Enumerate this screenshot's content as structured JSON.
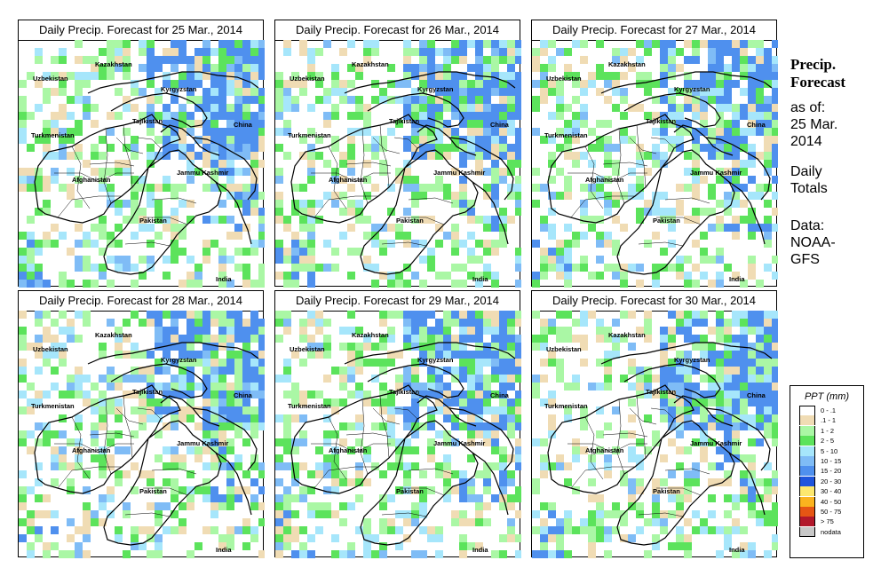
{
  "panels": [
    {
      "title": "Daily Precip. Forecast for  25 Mar., 2014"
    },
    {
      "title": "Daily Precip. Forecast for  26 Mar., 2014"
    },
    {
      "title": "Daily Precip. Forecast for  27 Mar., 2014"
    },
    {
      "title": "Daily Precip. Forecast for  28 Mar., 2014"
    },
    {
      "title": "Daily Precip. Forecast for  29 Mar., 2014"
    },
    {
      "title": "Daily Precip. Forecast for  30 Mar., 2014"
    }
  ],
  "map_labels": {
    "kazakhstan": "Kazakhstan",
    "uzbekistan": "Uzbekistan",
    "kyrgyzstan": "Kyrgyzstan",
    "tajikistan": "Tajikistan",
    "china": "China",
    "turkmenistan": "Turkmenistan",
    "jammu_kashmir": "Jammu Kashmir",
    "afghanistan": "Afghanistan",
    "pakistan": "Pakistan",
    "india": "India"
  },
  "sidebar": {
    "title_line1": "Precip.",
    "title_line2": "Forecast",
    "asof_label": "as of:",
    "asof_date_line1": "25 Mar.",
    "asof_date_line2": "2014",
    "totals_line1": "Daily",
    "totals_line2": "Totals",
    "data_label": "Data:",
    "data_source_line1": "NOAA-",
    "data_source_line2": "GFS"
  },
  "legend": {
    "title": "PPT (mm)",
    "items": [
      {
        "label": "0 - .1",
        "color": "#ffffff"
      },
      {
        "label": ".1 - 1",
        "color": "#f0dcb4"
      },
      {
        "label": "1 - 2",
        "color": "#aaf7a5"
      },
      {
        "label": "2 - 5",
        "color": "#5ce35c"
      },
      {
        "label": "5 - 10",
        "color": "#a6e6fb"
      },
      {
        "label": "10 - 15",
        "color": "#7fbcf6"
      },
      {
        "label": "15 - 20",
        "color": "#4f90ee"
      },
      {
        "label": "20 - 30",
        "color": "#1f55dc"
      },
      {
        "label": "30 - 40",
        "color": "#fde86e"
      },
      {
        "label": "40 - 50",
        "color": "#fbb31e"
      },
      {
        "label": "50 - 75",
        "color": "#e65614"
      },
      {
        "label": "> 75",
        "color": "#b2182b"
      },
      {
        "label": "nodata",
        "color": "#c8c8c8"
      }
    ]
  }
}
